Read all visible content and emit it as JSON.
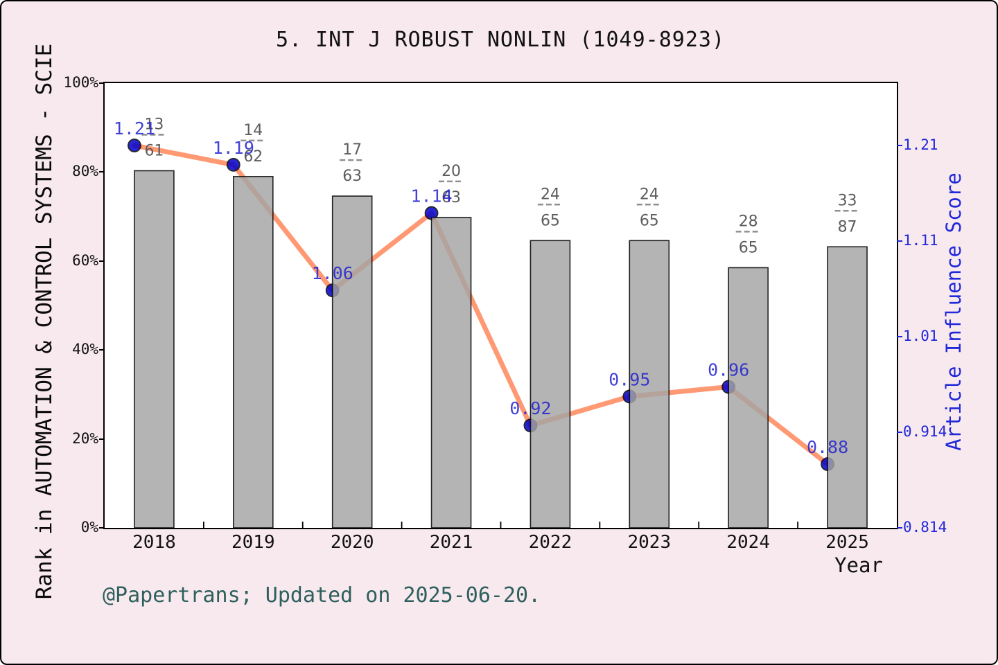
{
  "chart_data": {
    "type": "bar+line",
    "title": "5. INT J ROBUST NONLIN (1049-8923)",
    "categories": [
      "2018",
      "2019",
      "2020",
      "2021",
      "2022",
      "2023",
      "2024",
      "2025"
    ],
    "xlabel": "Year",
    "left_axis": {
      "label": "Rank in AUTOMATION & CONTROL SYSTEMS - SCIE",
      "ticks": [
        "0%",
        "20%",
        "40%",
        "60%",
        "80%",
        "100%"
      ],
      "min": 0,
      "max": 100
    },
    "right_axis": {
      "label": "Article Influence Score",
      "ticks": [
        "0.814",
        "0.914",
        "1.01",
        "1.11",
        "1.21"
      ],
      "min": 0.814,
      "max": 1.21,
      "color": "#2028d8"
    },
    "series": [
      {
        "name": "journal-rank-percentile",
        "type": "bar",
        "values_pct": [
          80.3,
          79.0,
          74.6,
          69.8,
          64.6,
          64.6,
          58.5,
          63.2
        ],
        "rank_labels": [
          {
            "num": "13",
            "den": "61"
          },
          {
            "num": "14",
            "den": "62"
          },
          {
            "num": "17",
            "den": "63"
          },
          {
            "num": "20",
            "den": "63"
          },
          {
            "num": "24",
            "den": "65"
          },
          {
            "num": "24",
            "den": "65"
          },
          {
            "num": "28",
            "den": "65"
          },
          {
            "num": "33",
            "den": "87"
          }
        ],
        "bar_color": "#a3a3a3",
        "bar_edge_color": "#000000",
        "label_color": "#5c5c5c"
      },
      {
        "name": "article-influence-score",
        "type": "line",
        "values": [
          1.21,
          1.19,
          1.06,
          1.14,
          0.92,
          0.95,
          0.96,
          0.88
        ],
        "point_labels": [
          "1.21",
          "1.19",
          "1.06",
          "1.14",
          "0.92",
          "0.95",
          "0.96",
          "0.88"
        ],
        "line_color": "#ff7f50",
        "marker_color": "#0000cd",
        "label_color": "#2222cf"
      }
    ],
    "legend": "none",
    "grid": "off",
    "plot_background": "#ffffff",
    "figure_background": "#f8e9ee"
  },
  "footer": {
    "text": "@Papertrans; Updated on 2025-06-20."
  }
}
